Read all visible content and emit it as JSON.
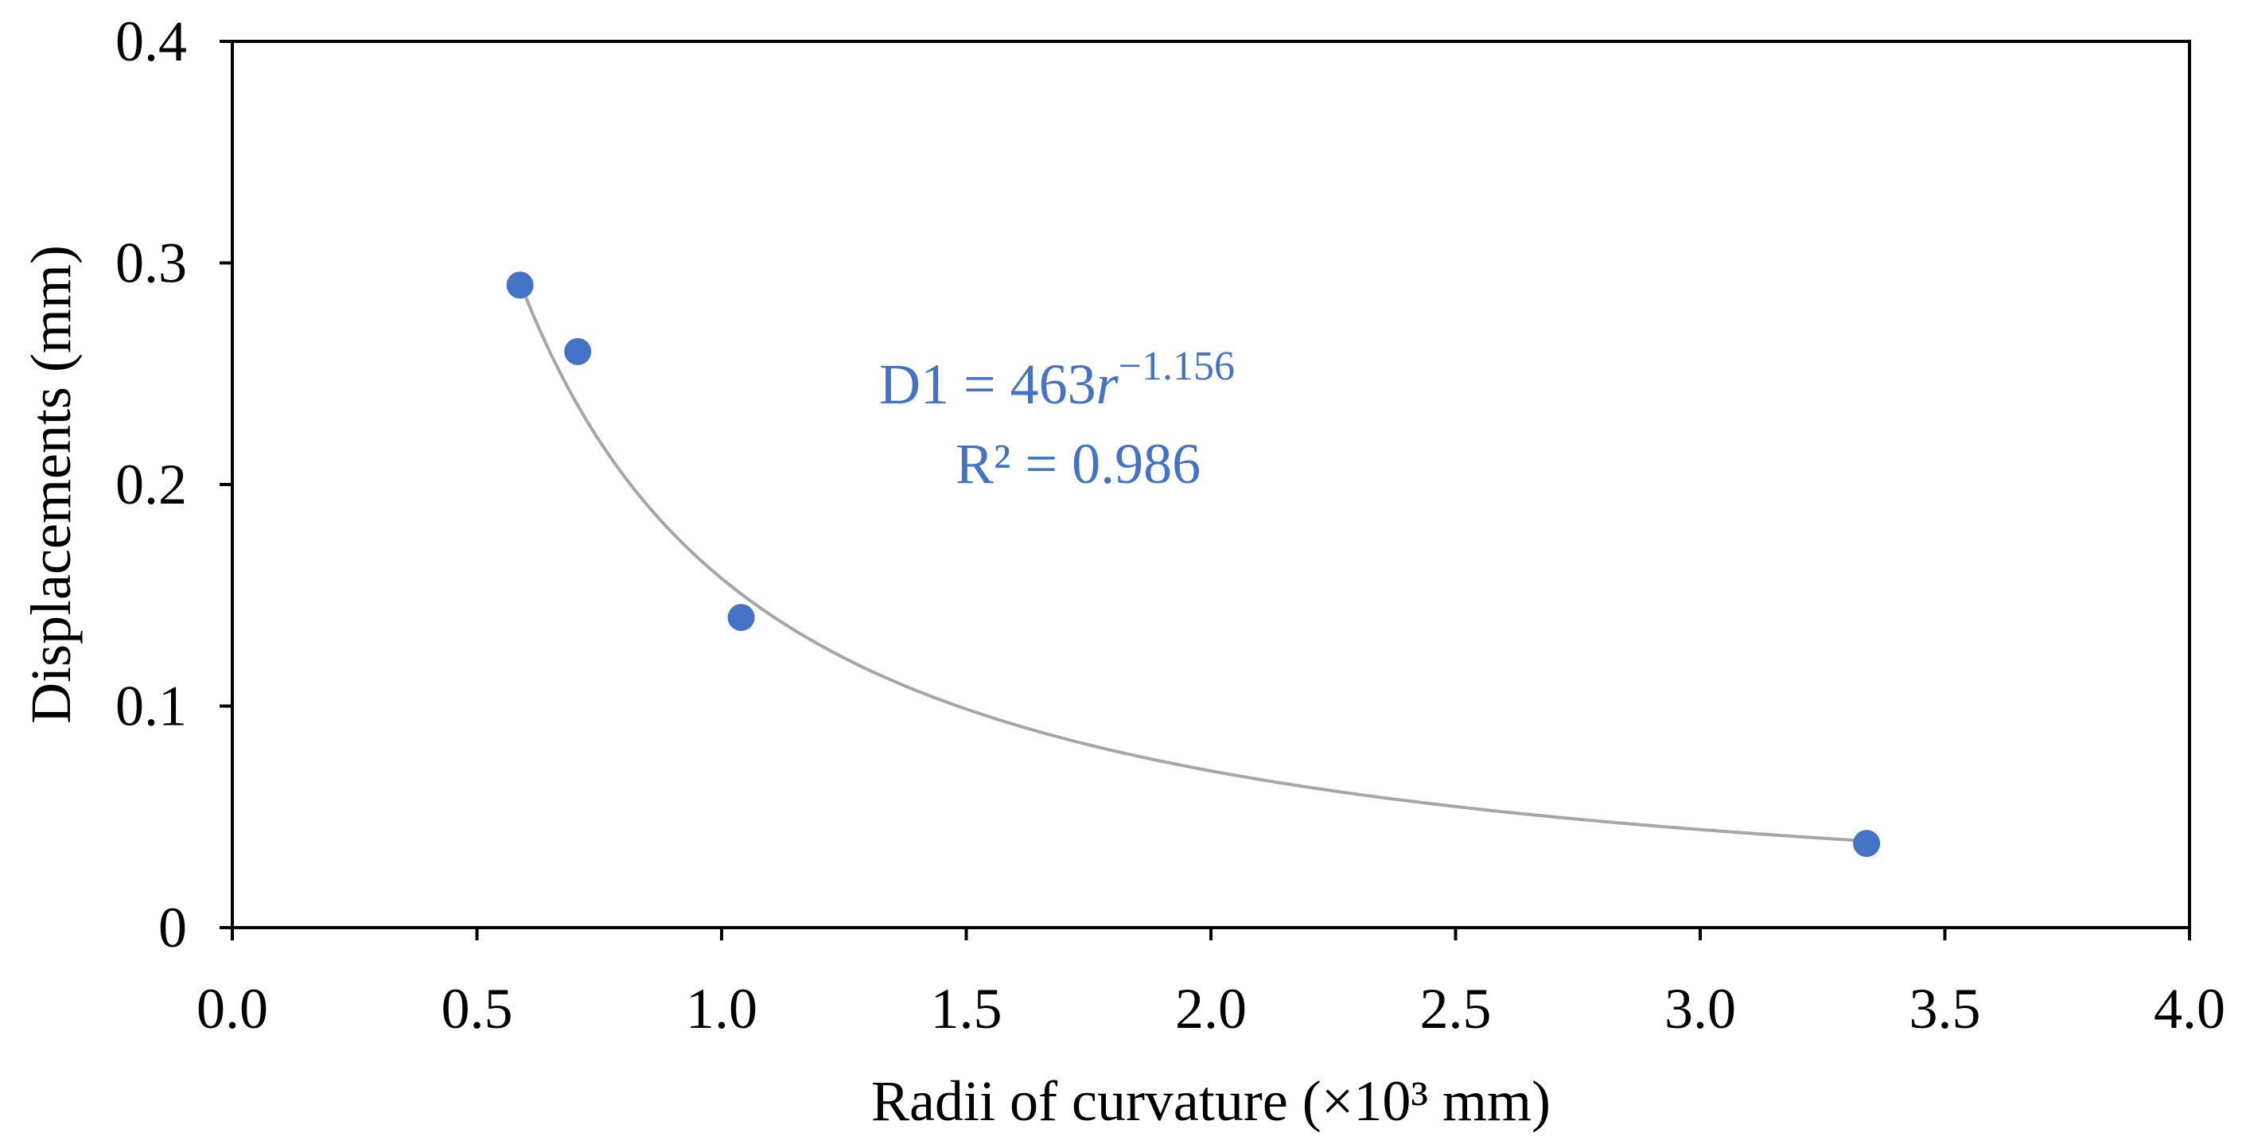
{
  "chart_data": {
    "type": "scatter",
    "xlabel": "Radii  of curvature  (×10³  mm)",
    "ylabel": "Displacements  (mm)",
    "xlim": [
      0.0,
      4.0
    ],
    "ylim": [
      0,
      0.4
    ],
    "x_ticks": [
      0.0,
      0.5,
      1.0,
      1.5,
      2.0,
      2.5,
      3.0,
      3.5,
      4.0
    ],
    "x_tick_labels": [
      "0.0",
      "0.5",
      "1.0",
      "1.5",
      "2.0",
      "2.5",
      "3.0",
      "3.5",
      "4.0"
    ],
    "y_ticks": [
      0,
      0.1,
      0.2,
      0.3,
      0.4
    ],
    "y_tick_labels": [
      "0",
      "0.1",
      "0.2",
      "0.3",
      "0.4"
    ],
    "grid": false,
    "series": [
      {
        "name": "D1",
        "color": "#4472C4",
        "x": [
          0.588,
          0.706,
          1.04,
          3.34
        ],
        "y": [
          0.29,
          0.26,
          0.14,
          0.038
        ]
      }
    ],
    "trendline": {
      "type": "power",
      "color": "#A6A6A6",
      "coefficient": 463,
      "exponent": -1.156,
      "x_range": [
        0.588,
        3.34
      ]
    },
    "annotation": {
      "color": "#4472C4",
      "equation_prefix": "D1 = 463",
      "equation_variable": "r",
      "equation_exponent": "−1.156",
      "r_squared": "R² = 0.986"
    }
  }
}
